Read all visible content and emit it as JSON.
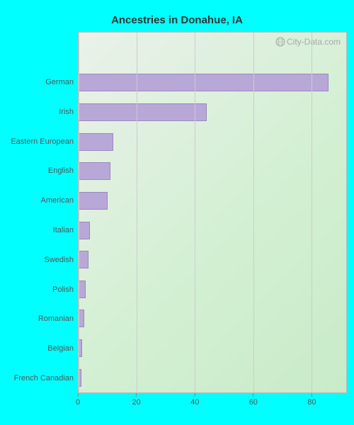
{
  "chart": {
    "type": "bar-horizontal",
    "title": "Ancestries in Donahue, IA",
    "title_fontsize": 15,
    "title_color": "#333333",
    "background_color": "#00ffff",
    "plot_background_gradient": [
      "#eaf1ea",
      "#d5f0d5",
      "#c8ebc8"
    ],
    "border_color": "#bbbbbb",
    "grid_color": "#cccccc",
    "bar_color": "#b8a8d8",
    "bar_border_color": "#9a88c0",
    "label_fontsize": 11,
    "label_color": "#555555",
    "xlim": [
      0,
      92
    ],
    "xtick_values": [
      0,
      20,
      40,
      60,
      80
    ],
    "xtick_labels": [
      "0",
      "20",
      "40",
      "60",
      "80"
    ],
    "top_padding_rows": 1,
    "categories": [
      {
        "label": "German",
        "value": 86
      },
      {
        "label": "Irish",
        "value": 44
      },
      {
        "label": "Eastern European",
        "value": 12
      },
      {
        "label": "English",
        "value": 11
      },
      {
        "label": "American",
        "value": 10
      },
      {
        "label": "Italian",
        "value": 4
      },
      {
        "label": "Swedish",
        "value": 3.5
      },
      {
        "label": "Polish",
        "value": 2.5
      },
      {
        "label": "Romanian",
        "value": 2
      },
      {
        "label": "Belgian",
        "value": 1.2
      },
      {
        "label": "French Canadian",
        "value": 1
      }
    ],
    "watermark": {
      "text": "City-Data.com",
      "color": "#999999",
      "fontsize": 12
    }
  }
}
